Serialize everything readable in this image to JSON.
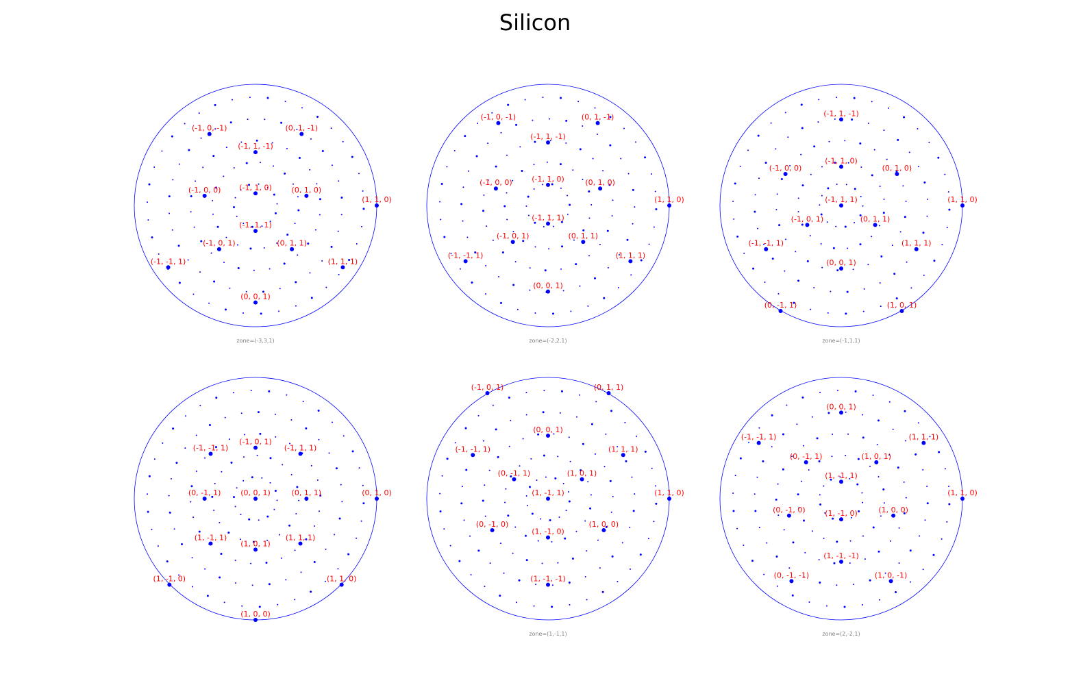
{
  "figure": {
    "title": "Silicon"
  },
  "colors": {
    "circle": "#0000ff",
    "points": "#0000ff",
    "labels": "#ff0000",
    "zone_text": "#808080"
  },
  "chart_data": [
    {
      "type": "scatter",
      "zone_label": "zone=(-3,3,1)",
      "projection_unit": "normalized stereographic (x,y in [-1,1])",
      "labeled_poles": [
        {
          "label": "(-1, 0, -1)",
          "x": -0.38,
          "y": 0.59
        },
        {
          "label": "(0, 1, -1)",
          "x": 0.38,
          "y": 0.59
        },
        {
          "label": "(-1, 1, -1)",
          "x": 0.0,
          "y": 0.44
        },
        {
          "label": "(-1, 0, 0)",
          "x": -0.42,
          "y": 0.08
        },
        {
          "label": "(-1, 1, 0)",
          "x": 0.0,
          "y": 0.1
        },
        {
          "label": "(0, 1, 0)",
          "x": 0.42,
          "y": 0.08
        },
        {
          "label": "(1, 1, 0)",
          "x": 1.0,
          "y": 0.0
        },
        {
          "label": "(-1, 1, 1)",
          "x": 0.0,
          "y": -0.21
        },
        {
          "label": "(-1, 0, 1)",
          "x": -0.3,
          "y": -0.36
        },
        {
          "label": "(0, 1, 1)",
          "x": 0.3,
          "y": -0.36
        },
        {
          "label": "(-1, -1, 1)",
          "x": -0.72,
          "y": -0.51
        },
        {
          "label": "(1, 1, 1)",
          "x": 0.72,
          "y": -0.51
        },
        {
          "label": "(0, 0, 1)",
          "x": 0.0,
          "y": -0.8
        }
      ]
    },
    {
      "type": "scatter",
      "zone_label": "zone=(-2,2,1)",
      "projection_unit": "normalized stereographic (x,y in [-1,1])",
      "labeled_poles": [
        {
          "label": "(-1, 0, -1)",
          "x": -0.41,
          "y": 0.68
        },
        {
          "label": "(0, 1, -1)",
          "x": 0.41,
          "y": 0.68
        },
        {
          "label": "(-1, 1, -1)",
          "x": 0.0,
          "y": 0.52
        },
        {
          "label": "(-1, 0, 0)",
          "x": -0.43,
          "y": 0.14
        },
        {
          "label": "(-1, 1, 0)",
          "x": 0.0,
          "y": 0.17
        },
        {
          "label": "(0, 1, 0)",
          "x": 0.43,
          "y": 0.14
        },
        {
          "label": "(1, 1, 0)",
          "x": 1.0,
          "y": 0.0
        },
        {
          "label": "(-1, 1, 1)",
          "x": 0.0,
          "y": -0.15
        },
        {
          "label": "(-1, 0, 1)",
          "x": -0.29,
          "y": -0.3
        },
        {
          "label": "(0, 1, 1)",
          "x": 0.29,
          "y": -0.3
        },
        {
          "label": "(-1, -1, 1)",
          "x": -0.68,
          "y": -0.46
        },
        {
          "label": "(1, 1, 1)",
          "x": 0.68,
          "y": -0.46
        },
        {
          "label": "(0, 0, 1)",
          "x": 0.0,
          "y": -0.71
        }
      ]
    },
    {
      "type": "scatter",
      "zone_label": "zone=(-1,1,1)",
      "projection_unit": "normalized stereographic (x,y in [-1,1])",
      "labeled_poles": [
        {
          "label": "(-1, 1, -1)",
          "x": 0.0,
          "y": 0.71
        },
        {
          "label": "(-1, 0, 0)",
          "x": -0.46,
          "y": 0.26
        },
        {
          "label": "(-1, 1, 0)",
          "x": 0.0,
          "y": 0.32
        },
        {
          "label": "(0, 1, 0)",
          "x": 0.46,
          "y": 0.26
        },
        {
          "label": "(1, 1, 0)",
          "x": 1.0,
          "y": 0.0
        },
        {
          "label": "(-1, 1, 1)",
          "x": 0.0,
          "y": 0.0
        },
        {
          "label": "(-1, 0, 1)",
          "x": -0.28,
          "y": -0.16
        },
        {
          "label": "(0, 1, 1)",
          "x": 0.28,
          "y": -0.16
        },
        {
          "label": "(-1, -1, 1)",
          "x": -0.62,
          "y": -0.36
        },
        {
          "label": "(1, 1, 1)",
          "x": 0.62,
          "y": -0.36
        },
        {
          "label": "(0, 0, 1)",
          "x": 0.0,
          "y": -0.52
        },
        {
          "label": "(0, -1, 1)",
          "x": -0.5,
          "y": -0.87
        },
        {
          "label": "(1, 0, 1)",
          "x": 0.5,
          "y": -0.87
        }
      ]
    },
    {
      "type": "scatter",
      "zone_label": "",
      "projection_unit": "normalized stereographic (x,y in [-1,1])",
      "labeled_poles": [
        {
          "label": "(-1, 0, 1)",
          "x": 0.0,
          "y": 0.42
        },
        {
          "label": "(-1, -1, 1)",
          "x": -0.37,
          "y": 0.37
        },
        {
          "label": "(-1, 1, 1)",
          "x": 0.37,
          "y": 0.37
        },
        {
          "label": "(0, -1, 1)",
          "x": -0.42,
          "y": 0.0
        },
        {
          "label": "(0, 0, 1)",
          "x": 0.0,
          "y": 0.0
        },
        {
          "label": "(0, 1, 1)",
          "x": 0.42,
          "y": 0.0
        },
        {
          "label": "(0, 1, 0)",
          "x": 1.0,
          "y": 0.0
        },
        {
          "label": "(1, -1, 1)",
          "x": -0.37,
          "y": -0.37
        },
        {
          "label": "(1, 0, 1)",
          "x": 0.0,
          "y": -0.42
        },
        {
          "label": "(1, 1, 1)",
          "x": 0.37,
          "y": -0.37
        },
        {
          "label": "(1, -1, 0)",
          "x": -0.71,
          "y": -0.71
        },
        {
          "label": "(1, 1, 0)",
          "x": 0.71,
          "y": -0.71
        },
        {
          "label": "(1, 0, 0)",
          "x": 0.0,
          "y": -1.0
        }
      ]
    },
    {
      "type": "scatter",
      "zone_label": "zone=(1,-1,1)",
      "projection_unit": "normalized stereographic (x,y in [-1,1])",
      "labeled_poles": [
        {
          "label": "(-1, 0, 1)",
          "x": -0.5,
          "y": 0.87
        },
        {
          "label": "(0, 1, 1)",
          "x": 0.5,
          "y": 0.87
        },
        {
          "label": "(0, 0, 1)",
          "x": 0.0,
          "y": 0.52
        },
        {
          "label": "(-1, -1, 1)",
          "x": -0.62,
          "y": 0.36
        },
        {
          "label": "(1, 1, 1)",
          "x": 0.62,
          "y": 0.36
        },
        {
          "label": "(0, -1, 1)",
          "x": -0.28,
          "y": 0.16
        },
        {
          "label": "(1, 0, 1)",
          "x": 0.28,
          "y": 0.16
        },
        {
          "label": "(1, -1, 1)",
          "x": 0.0,
          "y": 0.0
        },
        {
          "label": "(1, 1, 0)",
          "x": 1.0,
          "y": 0.0
        },
        {
          "label": "(0, -1, 0)",
          "x": -0.46,
          "y": -0.26
        },
        {
          "label": "(1, -1, 0)",
          "x": 0.0,
          "y": -0.32
        },
        {
          "label": "(1, 0, 0)",
          "x": 0.46,
          "y": -0.26
        },
        {
          "label": "(1, -1, -1)",
          "x": 0.0,
          "y": -0.71
        }
      ]
    },
    {
      "type": "scatter",
      "zone_label": "zone=(2,-2,1)",
      "projection_unit": "normalized stereographic (x,y in [-1,1])",
      "labeled_poles": [
        {
          "label": "(0, 0, 1)",
          "x": 0.0,
          "y": 0.71
        },
        {
          "label": "(-1, -1, 1)",
          "x": -0.68,
          "y": 0.46
        },
        {
          "label": "(1, 1, 1)",
          "x": 0.68,
          "y": 0.46
        },
        {
          "label": "(0, -1, 1)",
          "x": -0.29,
          "y": 0.3
        },
        {
          "label": "(1, 0, 1)",
          "x": 0.29,
          "y": 0.3
        },
        {
          "label": "(1, -1, 1)",
          "x": 0.0,
          "y": 0.14
        },
        {
          "label": "(1, 1, 0)",
          "x": 1.0,
          "y": 0.0
        },
        {
          "label": "(0, -1, 0)",
          "x": -0.43,
          "y": -0.14
        },
        {
          "label": "(1, -1, 0)",
          "x": 0.0,
          "y": -0.17
        },
        {
          "label": "(1, 0, 0)",
          "x": 0.43,
          "y": -0.14
        },
        {
          "label": "(1, -1, -1)",
          "x": 0.0,
          "y": -0.52
        },
        {
          "label": "(0, -1, -1)",
          "x": -0.41,
          "y": -0.68
        },
        {
          "label": "(1, 0, -1)",
          "x": 0.41,
          "y": -0.68
        }
      ]
    }
  ]
}
